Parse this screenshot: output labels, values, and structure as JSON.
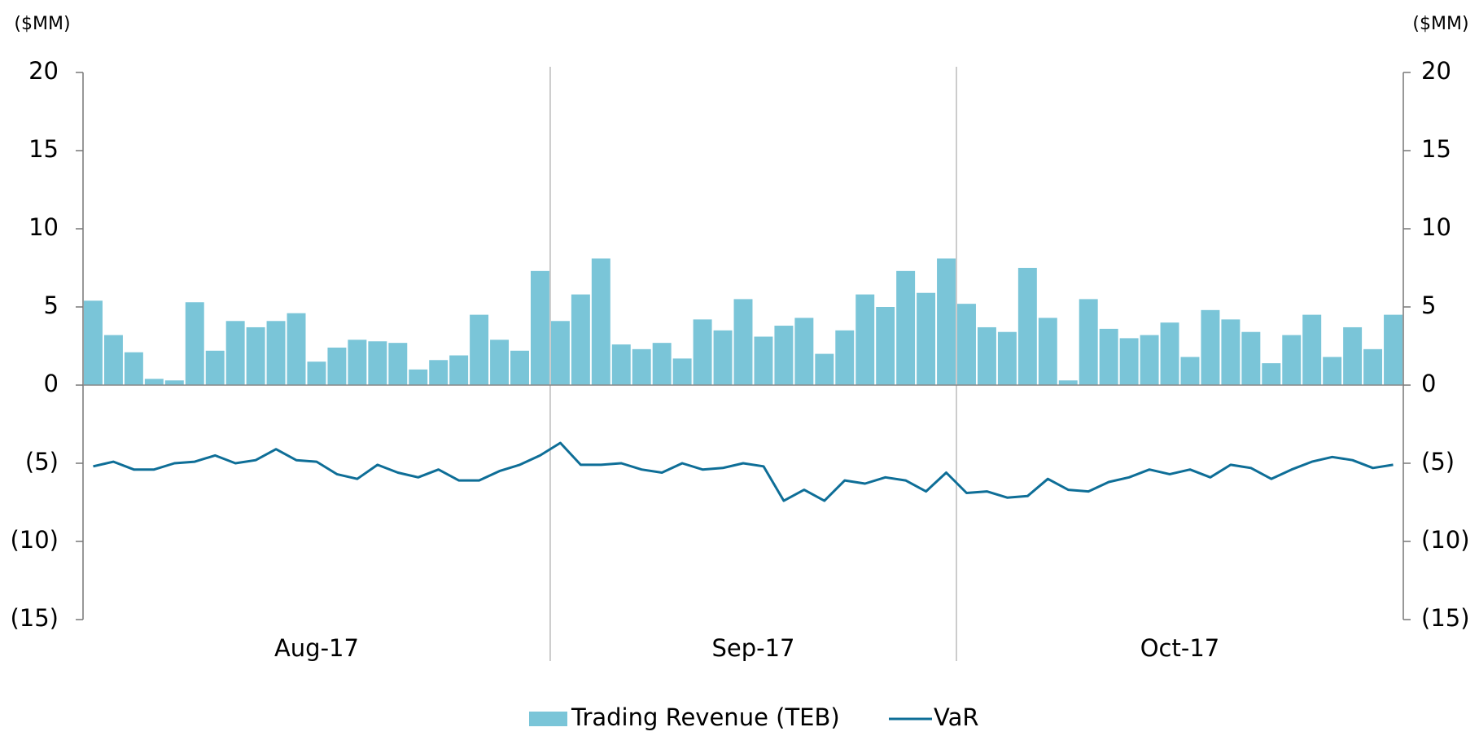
{
  "chart_data": {
    "type": "bar_line",
    "ylabel": "($MM)",
    "y2label": "($MM)",
    "categories": [
      "Aug-17",
      "Aug-17",
      "Aug-17",
      "Aug-17",
      "Aug-17",
      "Aug-17",
      "Aug-17",
      "Aug-17",
      "Aug-17",
      "Aug-17",
      "Aug-17",
      "Aug-17",
      "Aug-17",
      "Aug-17",
      "Aug-17",
      "Aug-17",
      "Aug-17",
      "Aug-17",
      "Aug-17",
      "Aug-17",
      "Aug-17",
      "Aug-17",
      "Aug-17",
      "Sep-17",
      "Sep-17",
      "Sep-17",
      "Sep-17",
      "Sep-17",
      "Sep-17",
      "Sep-17",
      "Sep-17",
      "Sep-17",
      "Sep-17",
      "Sep-17",
      "Sep-17",
      "Sep-17",
      "Sep-17",
      "Sep-17",
      "Sep-17",
      "Sep-17",
      "Sep-17",
      "Sep-17",
      "Sep-17",
      "Oct-17",
      "Oct-17",
      "Oct-17",
      "Oct-17",
      "Oct-17",
      "Oct-17",
      "Oct-17",
      "Oct-17",
      "Oct-17",
      "Oct-17",
      "Oct-17",
      "Oct-17",
      "Oct-17",
      "Oct-17",
      "Oct-17",
      "Oct-17",
      "Oct-17",
      "Oct-17",
      "Oct-17",
      "Oct-17",
      "Oct-17",
      "Oct-17"
    ],
    "series": [
      {
        "name": "Trading Revenue (TEB)",
        "type": "bar",
        "color": "#7ac5d8",
        "values": [
          5.4,
          3.2,
          2.1,
          0.4,
          0.3,
          5.3,
          2.2,
          4.1,
          3.7,
          4.1,
          4.6,
          1.5,
          2.4,
          2.9,
          2.8,
          2.7,
          1.0,
          1.6,
          1.9,
          4.5,
          2.9,
          2.2,
          7.3,
          4.1,
          5.8,
          8.1,
          2.6,
          2.3,
          2.7,
          1.7,
          4.2,
          3.5,
          5.5,
          3.1,
          3.8,
          4.3,
          2.0,
          3.5,
          5.8,
          5.0,
          7.3,
          5.9,
          8.1,
          5.2,
          3.7,
          3.4,
          7.5,
          4.3,
          0.3,
          5.5,
          3.6,
          3.0,
          3.2,
          4.0,
          1.8,
          4.8,
          4.2,
          3.4,
          1.4,
          3.2,
          4.5,
          1.8,
          3.7,
          2.3,
          4.5
        ]
      },
      {
        "name": "VaR",
        "type": "line",
        "color": "#0e6e97",
        "axis": "y2",
        "values": [
          -5.2,
          -4.9,
          -5.4,
          -5.4,
          -5.0,
          -4.9,
          -4.5,
          -5.0,
          -4.8,
          -4.1,
          -4.8,
          -4.9,
          -5.7,
          -6.0,
          -5.1,
          -5.6,
          -5.9,
          -5.4,
          -6.1,
          -6.1,
          -5.5,
          -5.1,
          -4.5,
          -3.7,
          -5.1,
          -5.1,
          -5.0,
          -5.4,
          -5.6,
          -5.0,
          -5.4,
          -5.3,
          -5.0,
          -5.2,
          -7.4,
          -6.7,
          -7.4,
          -6.1,
          -6.3,
          -5.9,
          -6.1,
          -6.8,
          -5.6,
          -6.9,
          -6.8,
          -7.2,
          -7.1,
          -6.0,
          -6.7,
          -6.8,
          -6.2,
          -5.9,
          -5.4,
          -5.7,
          -5.4,
          -5.9,
          -5.1,
          -5.3,
          -6.0,
          -5.4,
          -4.9,
          -4.6,
          -4.8,
          -5.3,
          -5.1
        ]
      }
    ],
    "ylim": [
      -15,
      20
    ],
    "yticks": [
      {
        "value": -15,
        "label": "(15)"
      },
      {
        "value": -10,
        "label": "(10)"
      },
      {
        "value": -5,
        "label": "(5)"
      },
      0,
      5,
      10,
      15,
      20
    ],
    "y2lim": [
      -15,
      20
    ],
    "y2ticks": [
      {
        "value": -15,
        "label": "(15)"
      },
      {
        "value": -10,
        "label": "(10)"
      },
      {
        "value": -5,
        "label": "(5)"
      },
      0,
      5,
      10,
      15,
      20
    ],
    "legend": "bottom"
  }
}
